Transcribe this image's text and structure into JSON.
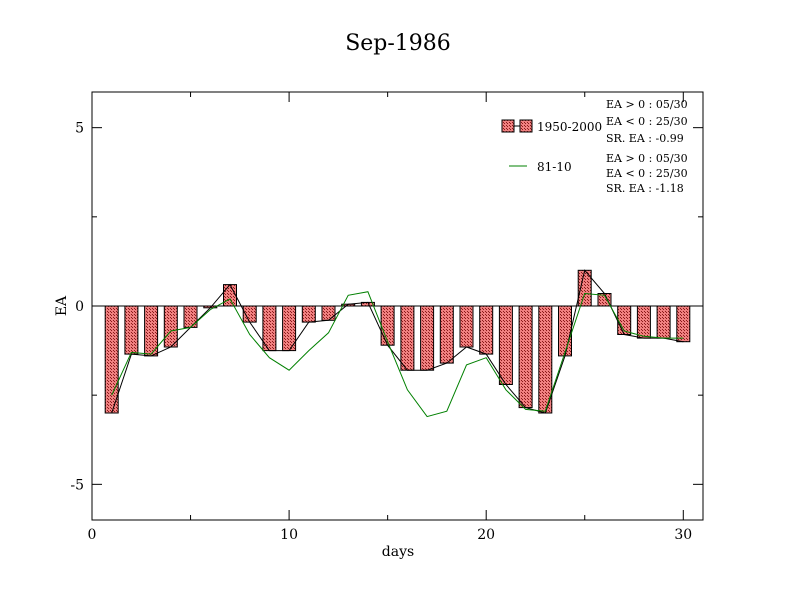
{
  "chart_data": {
    "type": "bar",
    "title": "Sep-1986",
    "xlabel": "days",
    "ylabel": "EA",
    "xlim": [
      0,
      31
    ],
    "ylim": [
      -6,
      6
    ],
    "xticks": [
      0,
      10,
      20,
      30
    ],
    "xtick_labels": [
      "0",
      "10",
      "20",
      "30"
    ],
    "yticks": [
      -5,
      0,
      5
    ],
    "ytick_labels": [
      "-5",
      "0",
      "5"
    ],
    "grid": false,
    "legend_position": "top-right",
    "colors": {
      "bar_fill": "#f08080",
      "bar_hatch": "#8b0000",
      "bar_line": "#000000",
      "series_1981": "#008000"
    },
    "x": [
      1,
      2,
      3,
      4,
      5,
      6,
      7,
      8,
      9,
      10,
      11,
      12,
      13,
      14,
      15,
      16,
      17,
      18,
      19,
      20,
      21,
      22,
      23,
      24,
      25,
      26,
      27,
      28,
      29,
      30
    ],
    "series": [
      {
        "name": "1950-2000",
        "kind": "bar+line",
        "values": [
          -3.0,
          -1.35,
          -1.4,
          -1.15,
          -0.6,
          -0.05,
          0.6,
          -0.45,
          -1.25,
          -1.25,
          -0.45,
          -0.4,
          0.05,
          0.1,
          -1.1,
          -1.8,
          -1.8,
          -1.6,
          -1.15,
          -1.35,
          -2.2,
          -2.85,
          -3.0,
          -1.4,
          1.0,
          0.35,
          -0.8,
          -0.9,
          -0.9,
          -1.0
        ]
      },
      {
        "name": "81-10",
        "kind": "line",
        "values": [
          -2.5,
          -1.3,
          -1.35,
          -0.7,
          -0.6,
          -0.1,
          0.2,
          -0.8,
          -1.45,
          -1.8,
          -1.25,
          -0.75,
          0.3,
          0.4,
          -1.0,
          -2.35,
          -3.1,
          -2.95,
          -1.65,
          -1.45,
          -2.35,
          -2.9,
          -2.95,
          -1.3,
          0.35,
          0.3,
          -0.7,
          -0.85,
          -0.9,
          -0.9
        ]
      }
    ],
    "annotations": {
      "set1": [
        "EA > 0 : 05/30",
        "EA < 0 : 25/30",
        "SR. EA : -0.99"
      ],
      "set2": [
        "EA > 0 : 05/30",
        "EA < 0 : 25/30",
        "SR. EA : -1.18"
      ]
    }
  }
}
